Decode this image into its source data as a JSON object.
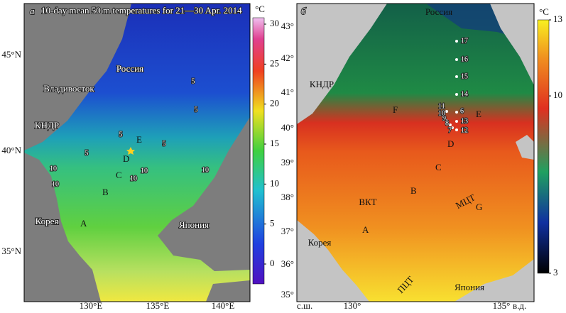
{
  "panels": [
    {
      "letter": "а",
      "title": "10-day mean 50 m temperatures for 21—30 Apr. 2014",
      "latitude_labels": [
        "45°N",
        "40°N",
        "35°N"
      ],
      "longitude_labels": [
        "130°E",
        "135°E",
        "140°E"
      ],
      "place_labels": [
        "Россия",
        "Владивосток",
        "КНДР",
        "Корея",
        "Япония"
      ],
      "region_labels": [
        "A",
        "B",
        "C",
        "D",
        "E"
      ],
      "contour_labels": [
        "5",
        "5",
        "5",
        "5",
        "5",
        "10",
        "10",
        "10",
        "10",
        "10"
      ],
      "colorbar": {
        "unit": "°C",
        "ticks": [
          0,
          5,
          10,
          15,
          20,
          25,
          30
        ]
      }
    },
    {
      "letter": "б",
      "latitude_labels": [
        "43°",
        "42°",
        "41°",
        "40°",
        "39°",
        "38°",
        "37°",
        "36°",
        "35°"
      ],
      "longitude_labels": [
        "130°",
        "135°"
      ],
      "axis_notes": [
        "с.ш.",
        "в.д."
      ],
      "place_labels": [
        "Россия",
        "КНДР",
        "Корея",
        "Япония"
      ],
      "region_labels": [
        "A",
        "B",
        "C",
        "D",
        "E",
        "F",
        "G"
      ],
      "current_labels": [
        "ВКТ",
        "МЦТ",
        "ПЦТ"
      ],
      "stations": [
        "6",
        "7",
        "8",
        "9",
        "10",
        "11",
        "12",
        "13",
        "14",
        "15",
        "16",
        "17"
      ],
      "colorbar": {
        "unit": "°C",
        "ticks": [
          3,
          10,
          13
        ]
      }
    }
  ]
}
